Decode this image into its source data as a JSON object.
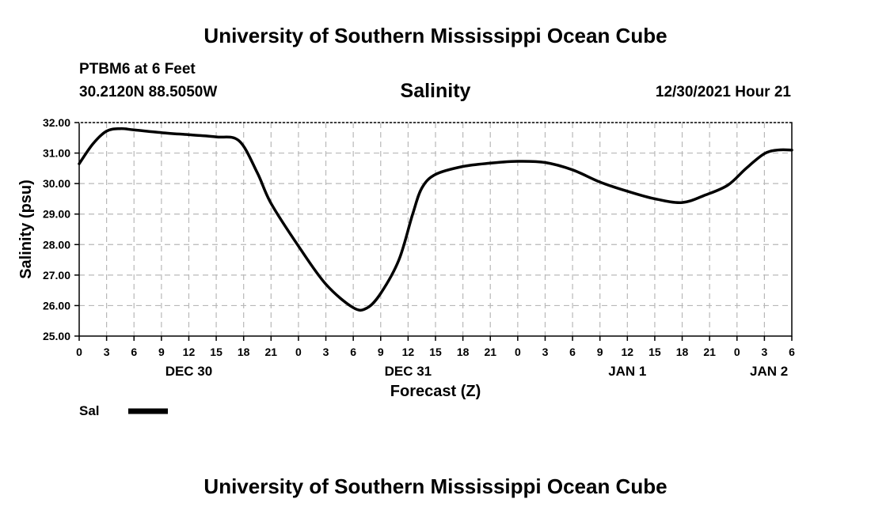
{
  "header": {
    "title": "University of Southern Mississippi Ocean Cube",
    "station": "PTBM6 at 6 Feet",
    "coordinates": "30.2120N  88.5050W",
    "timestamp": "12/30/2021 Hour 21"
  },
  "footer": {
    "title": "University of Southern Mississippi Ocean Cube"
  },
  "chart_data": {
    "type": "line",
    "title": "Salinity",
    "xlabel": "Forecast (Z)",
    "ylabel": "Salinity (psu)",
    "ylim": [
      25,
      32
    ],
    "xlim": [
      0,
      78
    ],
    "grid": true,
    "x_ticks": [
      "0",
      "3",
      "6",
      "9",
      "12",
      "15",
      "18",
      "21",
      "0",
      "3",
      "6",
      "9",
      "12",
      "15",
      "18",
      "21",
      "0",
      "3",
      "6",
      "9",
      "12",
      "15",
      "18",
      "21",
      "0",
      "3",
      "6"
    ],
    "y_ticks": [
      "25.00",
      "26.00",
      "27.00",
      "28.00",
      "29.00",
      "30.00",
      "31.00",
      "32.00"
    ],
    "date_labels": [
      {
        "label": "DEC 30",
        "hours": 12
      },
      {
        "label": "DEC 31",
        "hours": 36
      },
      {
        "label": "JAN 1",
        "hours": 60
      },
      {
        "label": "JAN 2",
        "hours": 75.5
      }
    ],
    "legend": {
      "label": "Sal",
      "position": "bottom-left"
    },
    "series": [
      {
        "name": "Sal",
        "x": [
          0,
          1.5,
          3,
          4.5,
          6,
          9,
          12,
          15,
          17.5,
          19.5,
          21,
          24,
          27,
          30,
          31.5,
          33,
          35,
          36.5,
          37.5,
          39,
          42,
          45,
          48,
          51,
          54,
          57,
          60,
          63,
          66,
          68.5,
          71,
          73,
          75,
          76.5,
          78
        ],
        "values": [
          30.65,
          31.3,
          31.72,
          31.8,
          31.76,
          31.67,
          31.6,
          31.53,
          31.4,
          30.35,
          29.35,
          27.95,
          26.7,
          25.93,
          25.92,
          26.4,
          27.5,
          29.0,
          29.85,
          30.3,
          30.56,
          30.67,
          30.73,
          30.69,
          30.45,
          30.05,
          29.75,
          29.5,
          29.38,
          29.62,
          29.95,
          30.5,
          30.98,
          31.1,
          31.1
        ]
      }
    ]
  }
}
